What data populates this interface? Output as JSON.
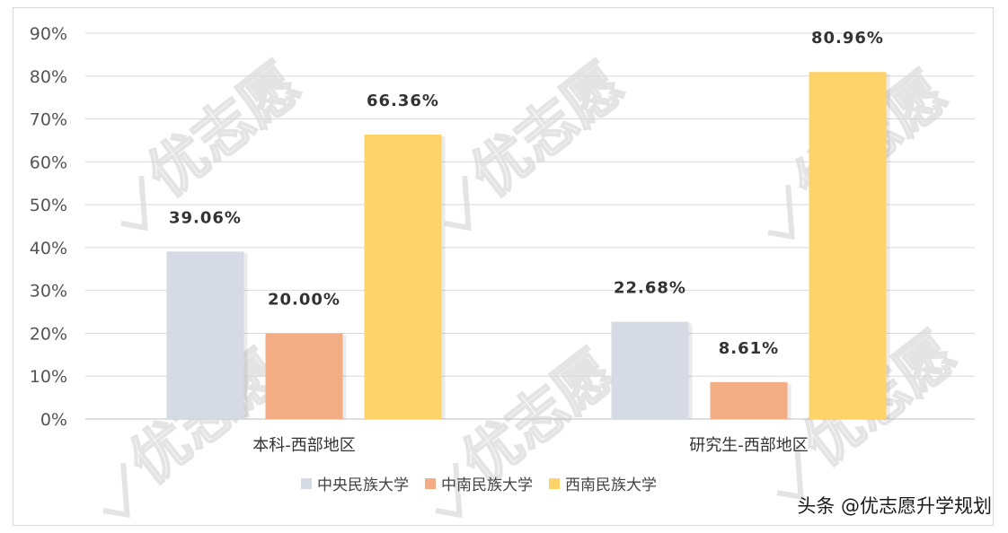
{
  "chart_data": {
    "type": "bar",
    "categories": [
      "本科-西部地区",
      "研究生-西部地区"
    ],
    "series": [
      {
        "name": "中央民族大学",
        "values": [
          39.06,
          22.68
        ],
        "labels": [
          "39.06%",
          "22.68%"
        ],
        "color": "#d6dae4"
      },
      {
        "name": "中南民族大学",
        "values": [
          20.0,
          8.61
        ],
        "labels": [
          "20.00%",
          "8.61%"
        ],
        "color": "#f2ad84"
      },
      {
        "name": "西南民族大学",
        "values": [
          66.36,
          80.96
        ],
        "labels": [
          "66.36%",
          "80.96%"
        ],
        "color": "#fdd36a"
      }
    ],
    "ylim": [
      0,
      90
    ],
    "yticks": [
      "0%",
      "10%",
      "20%",
      "30%",
      "40%",
      "50%",
      "60%",
      "70%",
      "80%",
      "90%"
    ],
    "grid": true,
    "legend": "bottom"
  },
  "watermark": {
    "text": "优志愿",
    "icon": "check-shield-icon"
  },
  "credit": "头条 @优志愿升学规划"
}
